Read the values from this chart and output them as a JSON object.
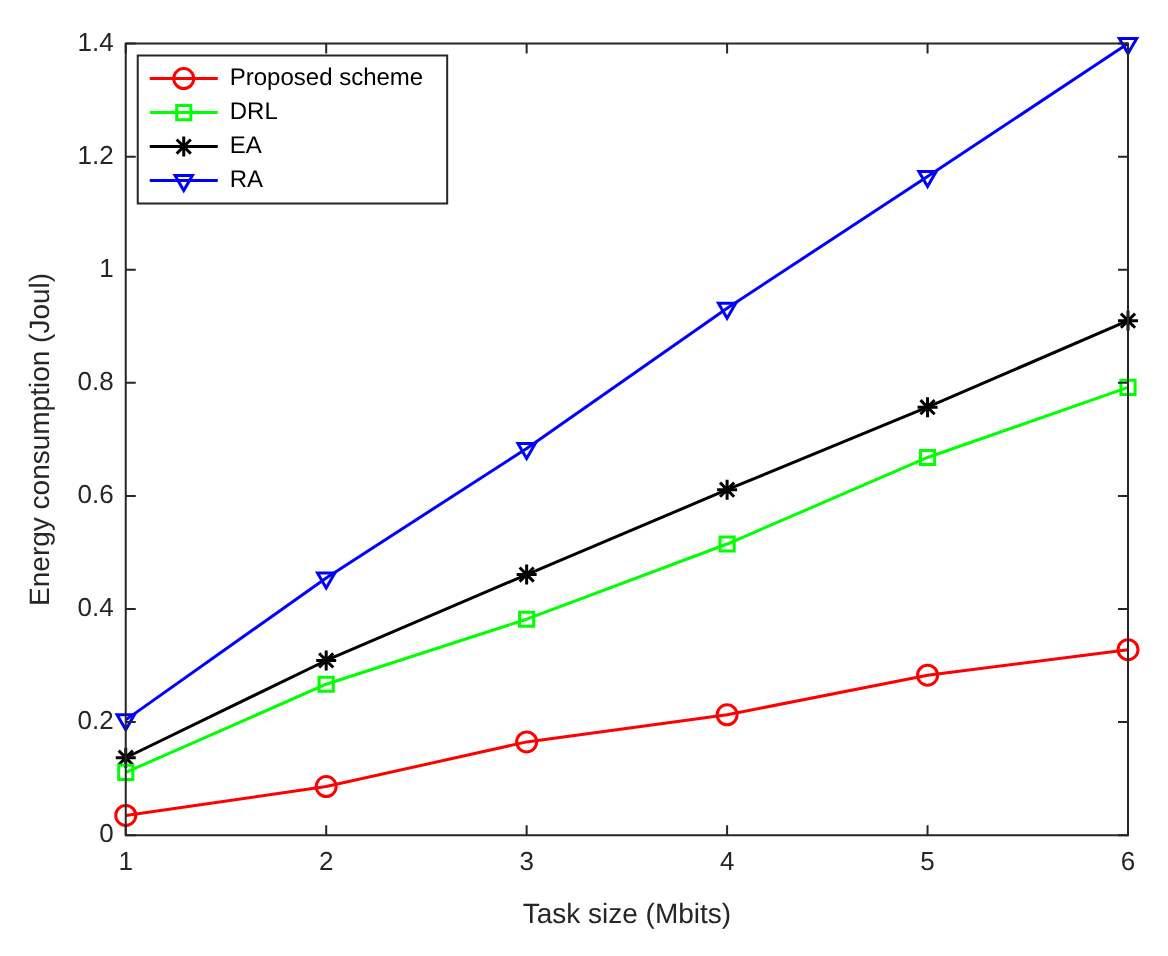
{
  "chart_data": {
    "type": "line",
    "xlabel": "Task size (Mbits)",
    "ylabel": "Energy consumption (Joul)",
    "x": [
      1,
      2,
      3,
      4,
      5,
      6
    ],
    "series": [
      {
        "name": "Proposed scheme",
        "color": "#ff0000",
        "marker": "circle",
        "values": [
          0.035,
          0.086,
          0.165,
          0.213,
          0.283,
          0.328
        ]
      },
      {
        "name": "DRL",
        "color": "#00ff00",
        "marker": "square",
        "values": [
          0.111,
          0.267,
          0.382,
          0.515,
          0.668,
          0.792
        ]
      },
      {
        "name": "EA",
        "color": "#000000",
        "marker": "cross",
        "values": [
          0.137,
          0.309,
          0.461,
          0.611,
          0.757,
          0.91
        ]
      },
      {
        "name": "RA",
        "color": "#0000ff",
        "marker": "triangle-down",
        "values": [
          0.204,
          0.455,
          0.684,
          0.932,
          1.165,
          1.4
        ]
      }
    ],
    "xlim": [
      1,
      6
    ],
    "xticks": [
      1,
      2,
      3,
      4,
      5,
      6
    ],
    "ylim": [
      0,
      1.4
    ],
    "yticks": [
      0,
      0.2,
      0.4,
      0.6,
      0.8,
      1,
      1.2,
      1.4
    ],
    "grid": false,
    "legend": "top left",
    "line_style": "solid"
  }
}
